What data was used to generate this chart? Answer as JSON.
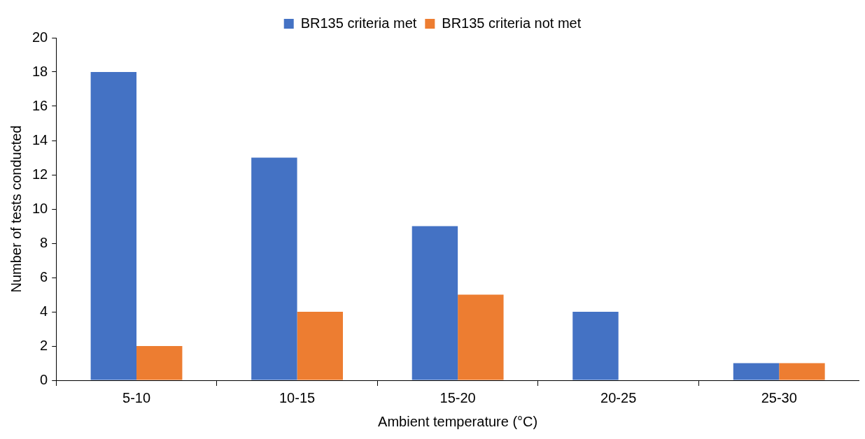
{
  "chart_data": {
    "type": "bar",
    "xlabel": "Ambient temperature (°C)",
    "ylabel": "Number of tests conducted",
    "categories": [
      "5-10",
      "10-15",
      "15-20",
      "20-25",
      "25-30"
    ],
    "series": [
      {
        "name": "BR135 criteria met",
        "color": "#4472c4",
        "values": [
          18,
          13,
          9,
          4,
          1
        ]
      },
      {
        "name": "BR135 criteria not met",
        "color": "#ed7d31",
        "values": [
          2,
          4,
          5,
          0,
          1
        ]
      }
    ],
    "ylim": [
      0,
      20
    ],
    "yticks": [
      0,
      2,
      4,
      6,
      8,
      10,
      12,
      14,
      16,
      18,
      20
    ],
    "grid": false,
    "legend": "top"
  }
}
